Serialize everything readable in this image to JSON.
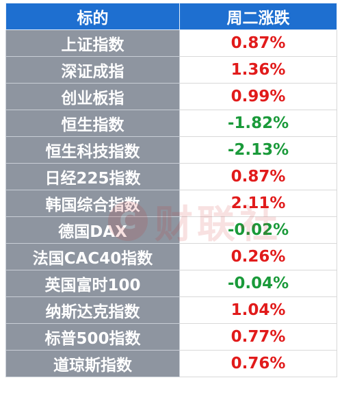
{
  "table": {
    "headers": [
      "标的",
      "周二涨跌"
    ],
    "rows": [
      {
        "name": "上证指数",
        "change": "0.87%",
        "direction": "up"
      },
      {
        "name": "深证成指",
        "change": "1.36%",
        "direction": "up"
      },
      {
        "name": "创业板指",
        "change": "0.99%",
        "direction": "up"
      },
      {
        "name": "恒生指数",
        "change": "-1.82%",
        "direction": "down"
      },
      {
        "name": "恒生科技指数",
        "change": "-2.13%",
        "direction": "down"
      },
      {
        "name": "日经225指数",
        "change": "0.87%",
        "direction": "up"
      },
      {
        "name": "韩国综合指数",
        "change": "2.11%",
        "direction": "up"
      },
      {
        "name": "德国DAX",
        "change": "-0.02%",
        "direction": "down"
      },
      {
        "name": "法国CAC40指数",
        "change": "0.26%",
        "direction": "up"
      },
      {
        "name": "英国富时100",
        "change": "-0.04%",
        "direction": "down"
      },
      {
        "name": "纳斯达克指数",
        "change": "1.04%",
        "direction": "up"
      },
      {
        "name": "标普500指数",
        "change": "0.77%",
        "direction": "up"
      },
      {
        "name": "道琼斯指数",
        "change": "0.76%",
        "direction": "up"
      }
    ]
  },
  "watermark": {
    "mark": "C",
    "text": "财联社"
  },
  "colors": {
    "header_bg": "#1e6fd0",
    "name_cell_bg": "#8e95a0",
    "up": "#e11b1b",
    "down": "#1a9a3a"
  }
}
